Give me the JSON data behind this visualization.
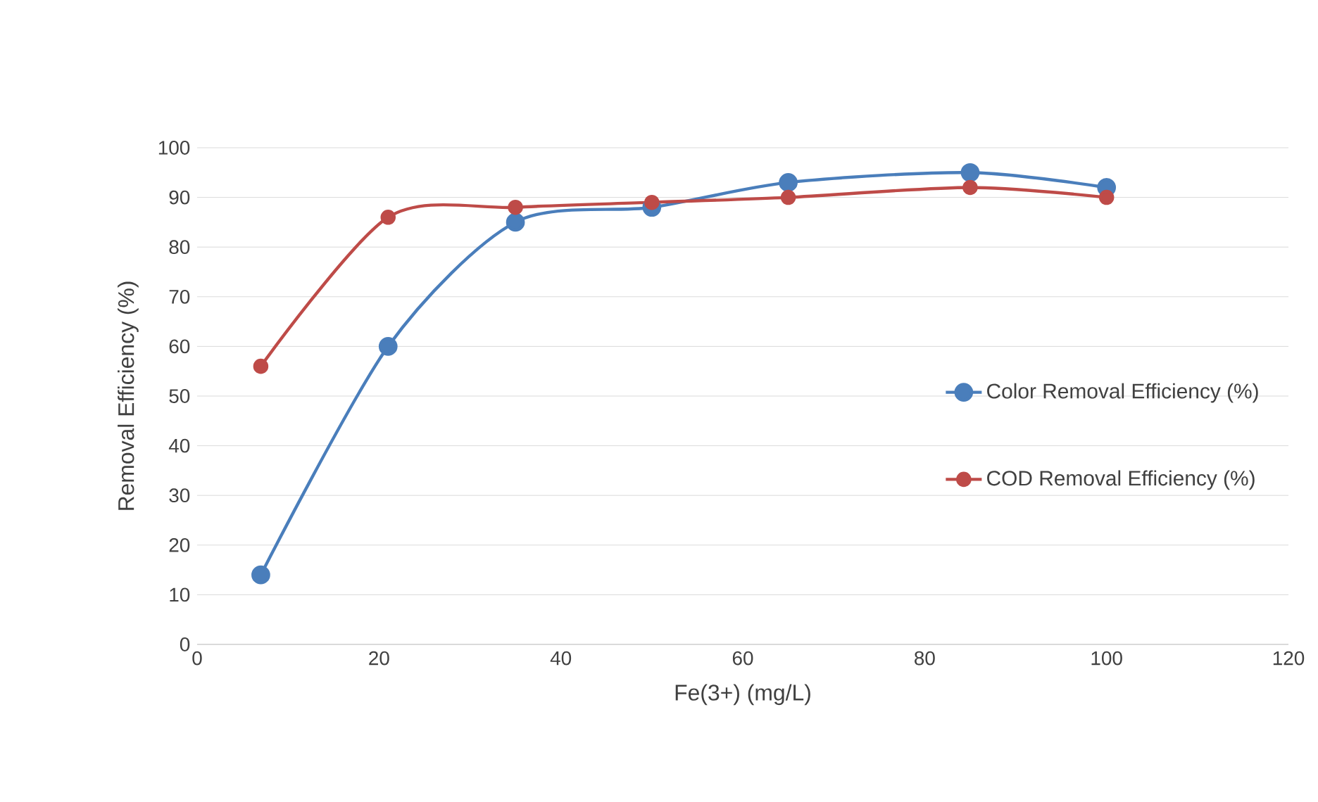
{
  "chart_data": {
    "type": "line",
    "xlabel": "Fe(3+) (mg/L)",
    "ylabel": "Removal Efficiency (%)",
    "x": [
      7,
      21,
      35,
      50,
      65,
      85,
      100
    ],
    "series": [
      {
        "name": "Color Removal Efficiency (%)",
        "color": "#4a7ebb",
        "values": [
          14,
          60,
          85,
          88,
          93,
          95,
          92
        ]
      },
      {
        "name": "COD  Removal Efficiency (%)",
        "color": "#be4b48",
        "values": [
          56,
          86,
          88,
          89,
          90,
          92,
          90
        ]
      }
    ],
    "xlim": [
      0,
      120
    ],
    "xticks": [
      0,
      20,
      40,
      60,
      80,
      100,
      120
    ],
    "ylim": [
      0,
      100
    ],
    "yticks": [
      0,
      10,
      20,
      30,
      40,
      50,
      60,
      70,
      80,
      90,
      100
    ],
    "grid": "y",
    "legend": "right",
    "marker": "circle",
    "line_style": "solid"
  }
}
